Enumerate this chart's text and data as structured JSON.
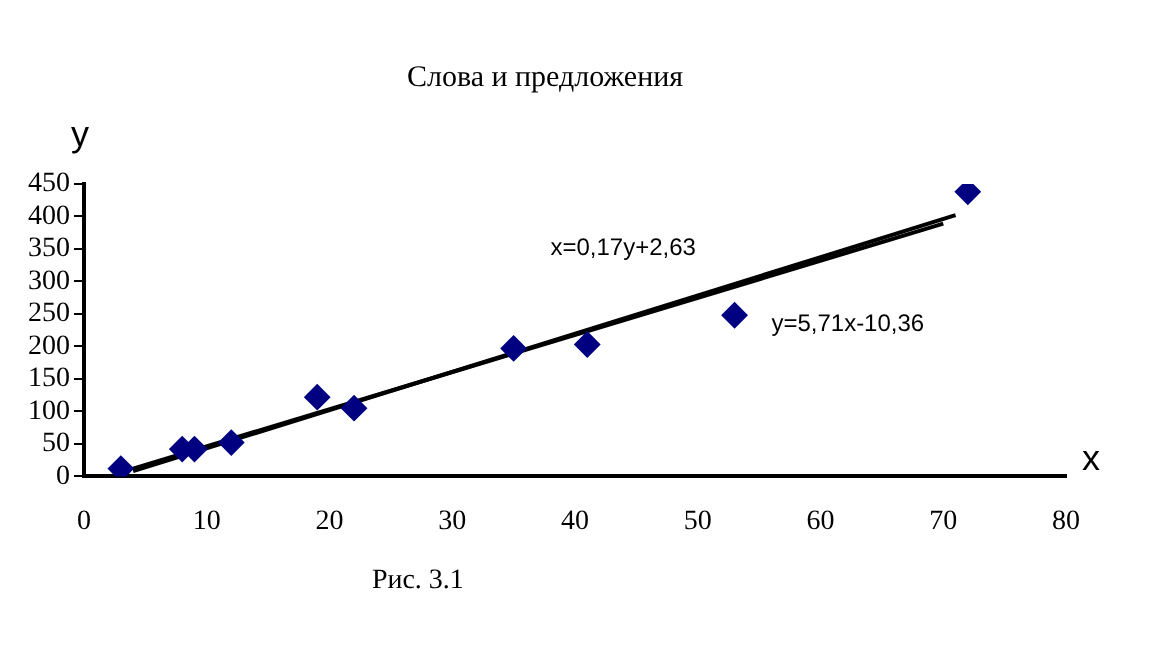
{
  "chart_data": {
    "type": "scatter",
    "title": "Слова и предложения",
    "xlabel": "x",
    "ylabel": "y",
    "marker": "diamond",
    "grid": false,
    "legend": false,
    "xlim": [
      0,
      80
    ],
    "xticks": [
      0,
      10,
      20,
      30,
      40,
      50,
      60,
      70,
      80
    ],
    "ylim": [
      0,
      450
    ],
    "yticks": [
      0,
      50,
      100,
      150,
      200,
      250,
      300,
      350,
      400,
      450
    ],
    "series": [
      {
        "type": "scatter",
        "color": "#000080",
        "x": [
          3,
          8,
          9,
          12,
          19,
          22,
          35,
          41,
          53,
          72
        ],
        "values": [
          12,
          42,
          42,
          52,
          122,
          105,
          197,
          203,
          248,
          438
        ]
      },
      {
        "type": "line",
        "color": "#000000",
        "marker": "none",
        "x": [
          4,
          70
        ],
        "values": [
          12,
          389
        ]
      },
      {
        "type": "line",
        "color": "#000000",
        "marker": "none",
        "x": [
          4,
          71
        ],
        "values": [
          8,
          402
        ]
      }
    ],
    "annotations": [
      "x=0,17y+2,63",
      "y=5,71x-10,36",
      "Рис. 3.1"
    ]
  }
}
